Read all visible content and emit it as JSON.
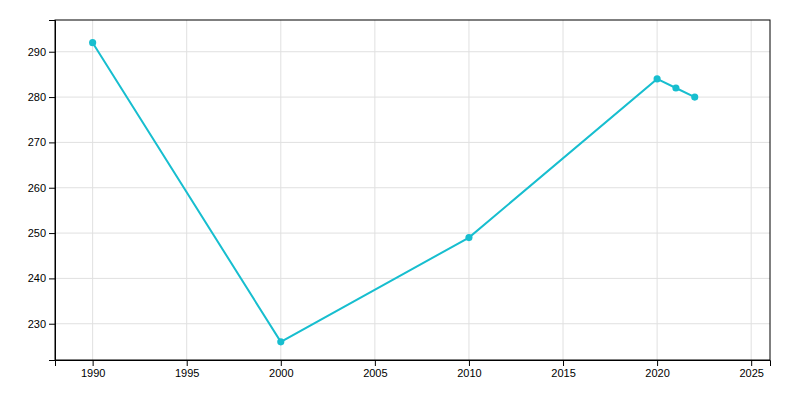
{
  "chart_data": {
    "type": "line",
    "x": [
      1990,
      2000,
      2010,
      2020,
      2021,
      2022
    ],
    "values": [
      292,
      226,
      249,
      284,
      282,
      280
    ],
    "color": "#17becf",
    "marker": "circle",
    "xlim": [
      1988,
      2026
    ],
    "ylim": [
      222,
      297
    ],
    "xticks": [
      1990,
      1995,
      2000,
      2005,
      2010,
      2015,
      2020,
      2025
    ],
    "yticks": [
      230,
      240,
      250,
      260,
      270,
      280,
      290
    ],
    "grid": true
  }
}
